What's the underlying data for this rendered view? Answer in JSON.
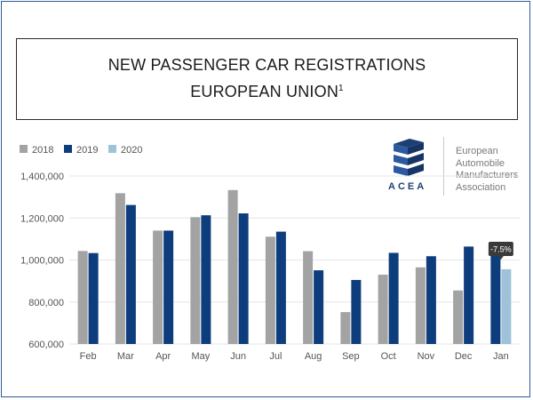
{
  "title": {
    "line1": "NEW PASSENGER CAR REGISTRATIONS",
    "line2": "EUROPEAN UNION",
    "footnote_mark": "1"
  },
  "logo": {
    "abbrev": "ACEA",
    "name_lines": [
      "European",
      "Automobile",
      "Manufacturers",
      "Association"
    ]
  },
  "chart_data": {
    "type": "bar",
    "categories": [
      "Feb",
      "Mar",
      "Apr",
      "May",
      "Jun",
      "Jul",
      "Aug",
      "Sep",
      "Oct",
      "Nov",
      "Dec",
      "Jan"
    ],
    "series": [
      {
        "name": "2018",
        "color": "#a3a3a3",
        "values": [
          1043000,
          1318000,
          1140000,
          1204000,
          1333000,
          1111000,
          1042000,
          752000,
          930000,
          965000,
          855000,
          null
        ]
      },
      {
        "name": "2019",
        "color": "#0d3d7c",
        "values": [
          1033000,
          1262000,
          1140000,
          1213000,
          1222000,
          1135000,
          951000,
          905000,
          1034000,
          1018000,
          1064000,
          1034000
        ]
      },
      {
        "name": "2020",
        "color": "#9ec3d9",
        "values": [
          null,
          null,
          null,
          null,
          null,
          null,
          null,
          null,
          null,
          null,
          null,
          956000
        ]
      }
    ],
    "ylim": [
      600000,
      1400000
    ],
    "yticks": [
      600000,
      800000,
      1000000,
      1200000,
      1400000
    ],
    "ytick_labels": [
      "600,000",
      "800,000",
      "1,000,000",
      "1,200,000",
      "1,400,000"
    ],
    "grid": true,
    "legend_position": "top-left",
    "annotation": {
      "category": "Jan",
      "text": "-7.5%"
    }
  }
}
